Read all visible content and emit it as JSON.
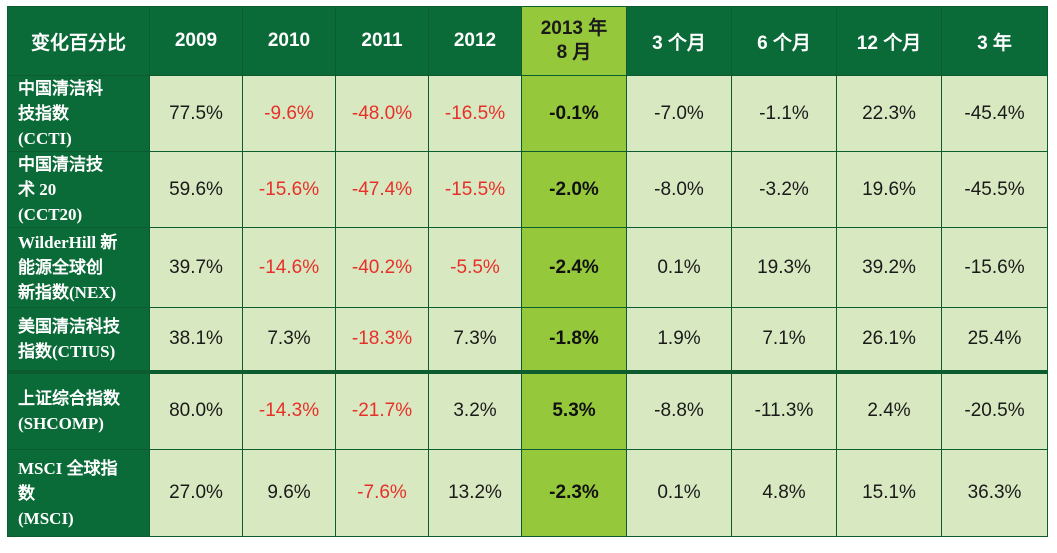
{
  "chart_data": {
    "type": "table",
    "header": [
      "变化百分比",
      "2009",
      "2010",
      "2011",
      "2012",
      "2013 年\n8 月",
      "3 个月",
      "6 个月",
      "12 个月",
      "3 年"
    ],
    "rows": [
      {
        "name": "中国清洁科\n技指数\n(CCTI)",
        "values": [
          "77.5%",
          "-9.6%",
          "-48.0%",
          "-16.5%",
          "-0.1%",
          "-7.0%",
          "-1.1%",
          "22.3%",
          "-45.4%"
        ]
      },
      {
        "name": "中国清洁技\n术 20\n(CCT20)",
        "values": [
          "59.6%",
          "-15.6%",
          "-47.4%",
          "-15.5%",
          "-2.0%",
          "-8.0%",
          "-3.2%",
          "19.6%",
          "-45.5%"
        ]
      },
      {
        "name": "WilderHill 新\n能源全球创\n新指数(NEX)",
        "values": [
          "39.7%",
          "-14.6%",
          "-40.2%",
          "-5.5%",
          "-2.4%",
          "0.1%",
          "19.3%",
          "39.2%",
          "-15.6%"
        ]
      },
      {
        "name": "美国清洁科技\n指数(CTIUS)",
        "values": [
          "38.1%",
          "7.3%",
          "-18.3%",
          "7.3%",
          "-1.8%",
          "1.9%",
          "7.1%",
          "26.1%",
          "25.4%"
        ]
      },
      {
        "name": "上证综合指数\n(SHCOMP)",
        "values": [
          "80.0%",
          "-14.3%",
          "-21.7%",
          "3.2%",
          "5.3%",
          "-8.8%",
          "-11.3%",
          "2.4%",
          "-20.5%"
        ]
      },
      {
        "name": "MSCI 全球指\n数\n(MSCI)",
        "values": [
          "27.0%",
          "9.6%",
          "-7.6%",
          "13.2%",
          "-2.3%",
          "0.1%",
          "4.8%",
          "15.1%",
          "36.3%"
        ]
      }
    ],
    "colors": {
      "header_bg": "#0b6b38",
      "body_bg": "#d8e8c0",
      "highlight_bg": "#96c83c",
      "negative_text": "#e8302a",
      "normal_text": "#1a1a1a"
    }
  }
}
